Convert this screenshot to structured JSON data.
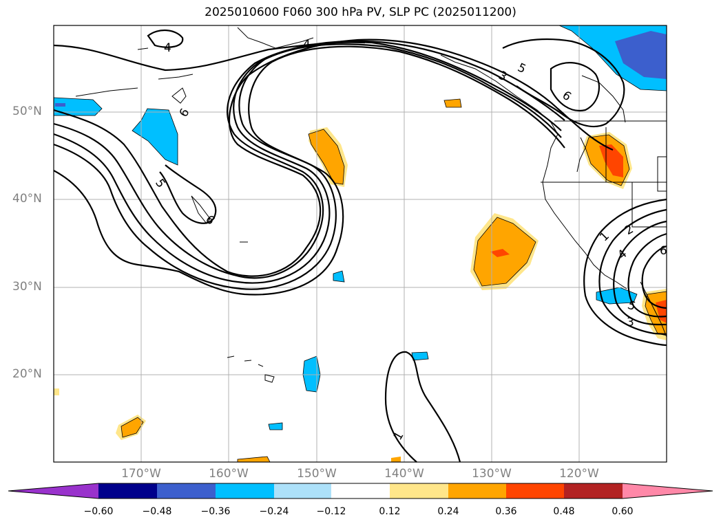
{
  "title": "2025010600 F060 300 hPa PV, SLP PC (2025011200)",
  "map": {
    "lat_labels": [
      "50°N",
      "40°N",
      "30°N",
      "20°N"
    ],
    "lon_labels": [
      "170°W",
      "160°W",
      "150°W",
      "140°W",
      "130°W",
      "120°W"
    ],
    "contour_labels": [
      {
        "id": "c4a",
        "text": "4"
      },
      {
        "id": "c4b",
        "text": "4"
      },
      {
        "id": "c5a",
        "text": "5"
      },
      {
        "id": "c6a",
        "text": "6"
      },
      {
        "id": "c5b",
        "text": "5"
      },
      {
        "id": "c6b",
        "text": "6"
      },
      {
        "id": "c6c",
        "text": "6"
      },
      {
        "id": "c1a",
        "text": "1"
      },
      {
        "id": "c2a",
        "text": "2"
      },
      {
        "id": "c1b",
        "text": "1"
      },
      {
        "id": "c4c",
        "text": "4"
      },
      {
        "id": "c5c",
        "text": "5"
      },
      {
        "id": "c3a",
        "text": "3"
      },
      {
        "id": "c6d",
        "text": "6"
      },
      {
        "id": "c3b",
        "text": "3"
      }
    ]
  },
  "colorbar": {
    "ticks": [
      "−0.60",
      "−0.48",
      "−0.36",
      "−0.24",
      "−0.12",
      "0.12",
      "0.24",
      "0.36",
      "0.48",
      "0.60"
    ],
    "colors": {
      "under": "#9932cc",
      "n060": "#00008b",
      "n048": "#3c5fcd",
      "n036": "#00bfff",
      "n024": "#ade1f9",
      "n012": "#ffffff",
      "p012": "#ffe68a",
      "p024": "#ffa500",
      "p036": "#ff4500",
      "p048": "#b22222",
      "over": "#ff88a8"
    }
  }
}
